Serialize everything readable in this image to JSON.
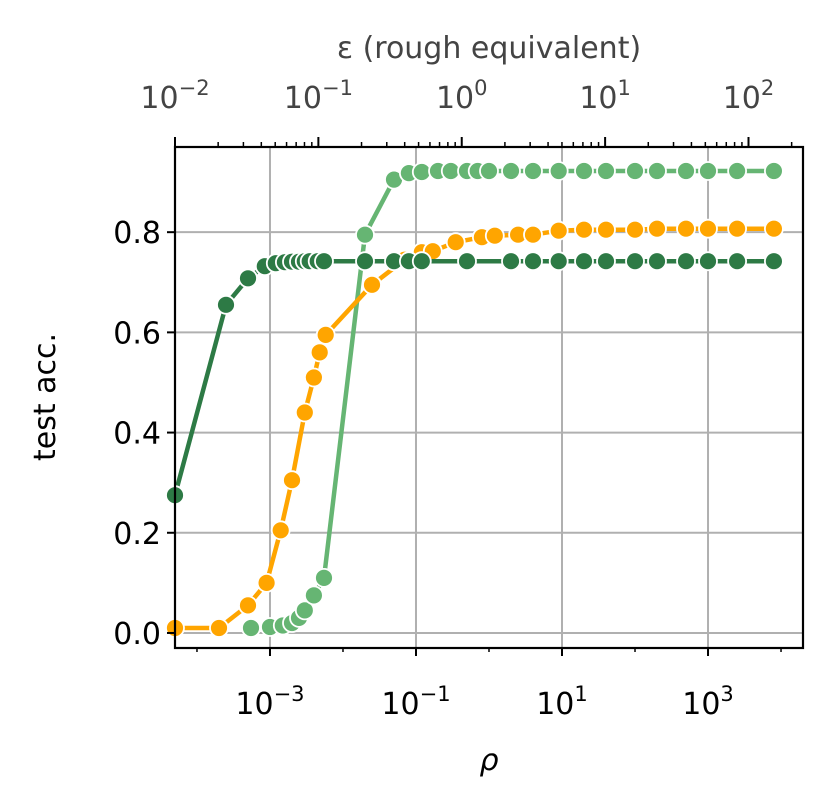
{
  "chart_data": {
    "type": "line",
    "title": "",
    "xlabel": "ρ",
    "ylabel": "test acc.",
    "top_xlabel": "ε (rough equivalent)",
    "xscale": "log",
    "xlim": [
      5e-05,
      20000
    ],
    "ylim": [
      -0.03,
      0.97
    ],
    "grid": true,
    "x_ticks": [
      {
        "value": 0.001,
        "base": "10",
        "exp": "−3"
      },
      {
        "value": 0.1,
        "base": "10",
        "exp": "−1"
      },
      {
        "value": 10,
        "base": "10",
        "exp": "1"
      },
      {
        "value": 1000,
        "base": "10",
        "exp": "3"
      }
    ],
    "y_ticks": [
      {
        "value": 0.0,
        "label": "0.0"
      },
      {
        "value": 0.2,
        "label": "0.2"
      },
      {
        "value": 0.4,
        "label": "0.4"
      },
      {
        "value": 0.6,
        "label": "0.6"
      },
      {
        "value": 0.8,
        "label": "0.8"
      }
    ],
    "top_axis": {
      "xlim": [
        0.01,
        240
      ],
      "ticks": [
        {
          "value": 0.01,
          "base": "10",
          "exp": "−2"
        },
        {
          "value": 0.1,
          "base": "10",
          "exp": "−1"
        },
        {
          "value": 1,
          "base": "10",
          "exp": "0"
        },
        {
          "value": 10,
          "base": "10",
          "exp": "1"
        },
        {
          "value": 100,
          "base": "10",
          "exp": "2"
        }
      ]
    },
    "series": [
      {
        "color": "#66b573",
        "points": [
          [
            0.00055,
            0.01
          ],
          [
            0.001,
            0.012
          ],
          [
            0.0015,
            0.015
          ],
          [
            0.002,
            0.02
          ],
          [
            0.0025,
            0.03
          ],
          [
            0.003,
            0.045
          ],
          [
            0.004,
            0.075
          ],
          [
            0.0055,
            0.11
          ],
          [
            0.02,
            0.795
          ],
          [
            0.05,
            0.905
          ],
          [
            0.08,
            0.918
          ],
          [
            0.12,
            0.92
          ],
          [
            0.2,
            0.922
          ],
          [
            0.3,
            0.922
          ],
          [
            0.5,
            0.922
          ],
          [
            0.7,
            0.922
          ],
          [
            1,
            0.922
          ],
          [
            2,
            0.922
          ],
          [
            4,
            0.922
          ],
          [
            9,
            0.922
          ],
          [
            20,
            0.922
          ],
          [
            40,
            0.922
          ],
          [
            100,
            0.922
          ],
          [
            200,
            0.922
          ],
          [
            500,
            0.922
          ],
          [
            1000,
            0.922
          ],
          [
            2500,
            0.922
          ],
          [
            8000,
            0.922
          ]
        ]
      },
      {
        "color": "#ffa500",
        "points": [
          [
            5e-05,
            0.01
          ],
          [
            0.0002,
            0.01
          ],
          [
            0.0005,
            0.055
          ],
          [
            0.0009,
            0.1
          ],
          [
            0.0014,
            0.205
          ],
          [
            0.002,
            0.305
          ],
          [
            0.003,
            0.44
          ],
          [
            0.004,
            0.51
          ],
          [
            0.0048,
            0.56
          ],
          [
            0.0058,
            0.595
          ],
          [
            0.025,
            0.695
          ],
          [
            0.07,
            0.745
          ],
          [
            0.12,
            0.76
          ],
          [
            0.17,
            0.762
          ],
          [
            0.35,
            0.78
          ],
          [
            0.8,
            0.79
          ],
          [
            1.2,
            0.793
          ],
          [
            2.5,
            0.795
          ],
          [
            4,
            0.795
          ],
          [
            9,
            0.803
          ],
          [
            20,
            0.805
          ],
          [
            40,
            0.805
          ],
          [
            100,
            0.805
          ],
          [
            200,
            0.807
          ],
          [
            500,
            0.807
          ],
          [
            1000,
            0.807
          ],
          [
            2500,
            0.807
          ],
          [
            8000,
            0.807
          ]
        ]
      },
      {
        "color": "#2d7a45",
        "points": [
          [
            5e-05,
            0.275
          ],
          [
            0.00025,
            0.655
          ],
          [
            0.0005,
            0.708
          ],
          [
            0.00085,
            0.732
          ],
          [
            0.0012,
            0.738
          ],
          [
            0.0016,
            0.74
          ],
          [
            0.002,
            0.741
          ],
          [
            0.0025,
            0.741
          ],
          [
            0.003,
            0.742
          ],
          [
            0.0035,
            0.742
          ],
          [
            0.0045,
            0.742
          ],
          [
            0.0055,
            0.742
          ],
          [
            0.02,
            0.742
          ],
          [
            0.05,
            0.742
          ],
          [
            0.08,
            0.742
          ],
          [
            0.12,
            0.742
          ],
          [
            0.5,
            0.742
          ],
          [
            2,
            0.742
          ],
          [
            4,
            0.742
          ],
          [
            9,
            0.742
          ],
          [
            20,
            0.742
          ],
          [
            40,
            0.742
          ],
          [
            100,
            0.742
          ],
          [
            200,
            0.742
          ],
          [
            500,
            0.742
          ],
          [
            1000,
            0.742
          ],
          [
            2500,
            0.742
          ],
          [
            8000,
            0.742
          ]
        ]
      }
    ]
  }
}
